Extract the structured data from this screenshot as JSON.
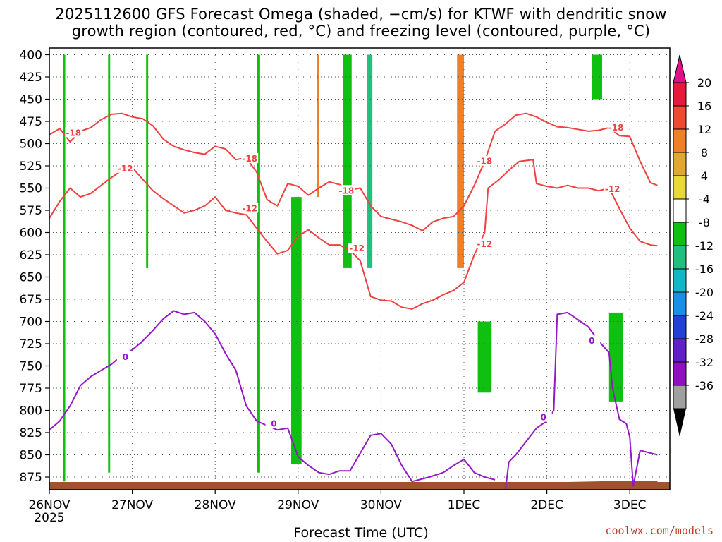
{
  "title_line1": "2025112600 GFS Forecast Omega (shaded, −cm/s) for KTWF with dendritic snow",
  "title_line2": "growth region (contoured, red, °C) and freezing level (contoured, purple, °C)",
  "credit": "coolwx.com/models",
  "chart_data": {
    "type": "heatmap",
    "xlabel": "Forecast Time (UTC)",
    "ylabel": "",
    "y_axis_inverted": true,
    "y_ticks": [
      400,
      425,
      450,
      475,
      500,
      525,
      550,
      575,
      600,
      625,
      650,
      675,
      700,
      725,
      750,
      775,
      800,
      825,
      850,
      875
    ],
    "x_ticks": [
      {
        "label": "26NOV",
        "sublabel": "2025",
        "hour": 0
      },
      {
        "label": "27NOV",
        "sublabel": "",
        "hour": 24
      },
      {
        "label": "28NOV",
        "sublabel": "",
        "hour": 48
      },
      {
        "label": "29NOV",
        "sublabel": "",
        "hour": 72
      },
      {
        "label": "30NOV",
        "sublabel": "",
        "hour": 96
      },
      {
        "label": "1DEC",
        "sublabel": "",
        "hour": 120
      },
      {
        "label": "2DEC",
        "sublabel": "",
        "hour": 144
      },
      {
        "label": "3DEC",
        "sublabel": "",
        "hour": 168
      }
    ],
    "grid": true,
    "colorbar": {
      "labels": [
        "20",
        "16",
        "12",
        "8",
        "4",
        "-4",
        "-8",
        "-12",
        "-16",
        "-20",
        "-24",
        "-28",
        "-32",
        "-36"
      ],
      "colors": [
        "#e8193c",
        "#f04a32",
        "#f08028",
        "#e0a830",
        "#e8d838",
        "#ffffff",
        "#10c010",
        "#20c080",
        "#10b8c8",
        "#1890e8",
        "#2040d8",
        "#6020c8",
        "#9010c0",
        "#a0a0a0"
      ],
      "top_arrow_color": "#e0108a",
      "bottom_arrow_color": "#000000"
    },
    "contours": [
      {
        "label": "-18",
        "color": "#f04040",
        "kind": "dgz",
        "points": [
          [
            0,
            490
          ],
          [
            3,
            483
          ],
          [
            6,
            498
          ],
          [
            9,
            486
          ],
          [
            12,
            482
          ],
          [
            15,
            473
          ],
          [
            18,
            467
          ],
          [
            21,
            466
          ],
          [
            24,
            470
          ],
          [
            27,
            472
          ],
          [
            30,
            480
          ],
          [
            33,
            495
          ],
          [
            36,
            503
          ],
          [
            39,
            507
          ],
          [
            42,
            510
          ],
          [
            45,
            512
          ],
          [
            48,
            503
          ],
          [
            51,
            506
          ],
          [
            54,
            518
          ],
          [
            57,
            516
          ],
          [
            60,
            532
          ],
          [
            63,
            563
          ],
          [
            66,
            570
          ],
          [
            69,
            545
          ],
          [
            72,
            548
          ],
          [
            75,
            558
          ],
          [
            78,
            550
          ],
          [
            81,
            543
          ],
          [
            84,
            546
          ],
          [
            87,
            552
          ],
          [
            90,
            550
          ],
          [
            93,
            570
          ],
          [
            96,
            582
          ],
          [
            99,
            585
          ],
          [
            102,
            588
          ],
          [
            105,
            592
          ],
          [
            108,
            598
          ],
          [
            111,
            588
          ],
          [
            114,
            584
          ],
          [
            117,
            582
          ],
          [
            120,
            570
          ],
          [
            123,
            547
          ],
          [
            126,
            520
          ],
          [
            129,
            486
          ],
          [
            132,
            478
          ],
          [
            135,
            468
          ],
          [
            138,
            466
          ],
          [
            141,
            470
          ],
          [
            144,
            476
          ],
          [
            147,
            481
          ],
          [
            150,
            482
          ],
          [
            153,
            484
          ],
          [
            156,
            486
          ],
          [
            159,
            485
          ],
          [
            162,
            482
          ],
          [
            165,
            491
          ],
          [
            168,
            492
          ],
          [
            171,
            520
          ],
          [
            174,
            544
          ],
          [
            176,
            547
          ]
        ],
        "labels_at": [
          [
            7,
            488
          ],
          [
            58,
            517
          ],
          [
            86,
            553
          ],
          [
            126,
            520
          ],
          [
            164,
            482
          ]
        ]
      },
      {
        "label": "-12",
        "color": "#f04040",
        "kind": "dgz",
        "points": [
          [
            0,
            584
          ],
          [
            3,
            565
          ],
          [
            6,
            550
          ],
          [
            9,
            560
          ],
          [
            12,
            556
          ],
          [
            15,
            547
          ],
          [
            18,
            538
          ],
          [
            21,
            530
          ],
          [
            24,
            527
          ],
          [
            27,
            540
          ],
          [
            30,
            553
          ],
          [
            33,
            562
          ],
          [
            36,
            570
          ],
          [
            39,
            578
          ],
          [
            42,
            575
          ],
          [
            45,
            570
          ],
          [
            48,
            560
          ],
          [
            51,
            575
          ],
          [
            54,
            578
          ],
          [
            57,
            580
          ],
          [
            60,
            595
          ],
          [
            63,
            610
          ],
          [
            66,
            624
          ],
          [
            69,
            620
          ],
          [
            72,
            604
          ],
          [
            75,
            597
          ],
          [
            78,
            606
          ],
          [
            81,
            614
          ],
          [
            84,
            614
          ],
          [
            87,
            620
          ],
          [
            90,
            632
          ],
          [
            93,
            672
          ],
          [
            96,
            676
          ],
          [
            99,
            677
          ],
          [
            102,
            684
          ],
          [
            105,
            686
          ],
          [
            108,
            680
          ],
          [
            111,
            676
          ],
          [
            114,
            670
          ],
          [
            117,
            665
          ],
          [
            120,
            656
          ],
          [
            123,
            625
          ],
          [
            126,
            600
          ],
          [
            127,
            550
          ],
          [
            130,
            541
          ],
          [
            133,
            530
          ],
          [
            136,
            520
          ],
          [
            140,
            518
          ],
          [
            141,
            545
          ],
          [
            144,
            548
          ],
          [
            147,
            550
          ],
          [
            150,
            547
          ],
          [
            153,
            550
          ],
          [
            156,
            550
          ],
          [
            159,
            553
          ],
          [
            162,
            550
          ],
          [
            165,
            573
          ],
          [
            168,
            595
          ],
          [
            171,
            610
          ],
          [
            174,
            614
          ],
          [
            176,
            615
          ]
        ],
        "labels_at": [
          [
            22,
            528
          ],
          [
            58,
            573
          ],
          [
            89,
            618
          ],
          [
            126,
            613
          ],
          [
            163,
            551
          ]
        ]
      },
      {
        "label": "0",
        "color": "#9418c8",
        "kind": "freezing",
        "points": [
          [
            0,
            822
          ],
          [
            3,
            812
          ],
          [
            6,
            795
          ],
          [
            9,
            772
          ],
          [
            12,
            762
          ],
          [
            15,
            755
          ],
          [
            18,
            748
          ],
          [
            21,
            738
          ],
          [
            24,
            732
          ],
          [
            27,
            722
          ],
          [
            30,
            710
          ],
          [
            33,
            697
          ],
          [
            36,
            688
          ],
          [
            39,
            692
          ],
          [
            42,
            690
          ],
          [
            45,
            700
          ],
          [
            48,
            714
          ],
          [
            51,
            736
          ],
          [
            54,
            755
          ],
          [
            57,
            795
          ],
          [
            60,
            812
          ],
          [
            63,
            817
          ],
          [
            66,
            822
          ],
          [
            69,
            820
          ],
          [
            72,
            852
          ],
          [
            75,
            862
          ],
          [
            78,
            870
          ],
          [
            81,
            872
          ],
          [
            84,
            868
          ],
          [
            87,
            868
          ],
          [
            90,
            848
          ],
          [
            93,
            828
          ],
          [
            96,
            826
          ],
          [
            99,
            838
          ],
          [
            102,
            862
          ],
          [
            105,
            880
          ],
          [
            110,
            875
          ],
          [
            114,
            870
          ],
          [
            117,
            862
          ],
          [
            120,
            855
          ],
          [
            123,
            870
          ],
          [
            126,
            875
          ],
          [
            129,
            878
          ]
        ],
        "labels_at": [
          [
            22,
            740
          ],
          [
            65,
            815
          ]
        ]
      },
      {
        "label": "0",
        "color": "#9418c8",
        "kind": "freezing",
        "points": [
          [
            132,
            890
          ],
          [
            133,
            858
          ],
          [
            135,
            850
          ],
          [
            138,
            835
          ],
          [
            141,
            820
          ],
          [
            144,
            812
          ],
          [
            146,
            800
          ],
          [
            147,
            692
          ],
          [
            150,
            690
          ],
          [
            153,
            698
          ],
          [
            156,
            706
          ],
          [
            159,
            722
          ],
          [
            162,
            735
          ],
          [
            163,
            775
          ],
          [
            165,
            810
          ],
          [
            167,
            815
          ],
          [
            168,
            830
          ],
          [
            169,
            885
          ],
          [
            171,
            845
          ],
          [
            174,
            848
          ],
          [
            176,
            850
          ]
        ],
        "labels_at": [
          [
            143,
            808
          ],
          [
            157,
            722
          ]
        ]
      }
    ],
    "shading_bands": [
      {
        "x": [
          4.0,
          4.6
        ],
        "p": [
          400,
          880
        ],
        "value": -8
      },
      {
        "x": [
          17.0,
          17.6
        ],
        "p": [
          400,
          870
        ],
        "value": -8
      },
      {
        "x": [
          28.0,
          28.6
        ],
        "p": [
          400,
          640
        ],
        "value": -8
      },
      {
        "x": [
          60.0,
          61.0
        ],
        "p": [
          400,
          870
        ],
        "value": -8
      },
      {
        "x": [
          70.0,
          73.0
        ],
        "p": [
          560,
          860
        ],
        "value": -8
      },
      {
        "x": [
          77.5,
          78.0
        ],
        "p": [
          400,
          560
        ],
        "value": 12
      },
      {
        "x": [
          85.0,
          87.5
        ],
        "p": [
          400,
          640
        ],
        "value": -8
      },
      {
        "x": [
          92.0,
          93.5
        ],
        "p": [
          400,
          640
        ],
        "value": -12
      },
      {
        "x": [
          118.0,
          120.0
        ],
        "p": [
          400,
          640
        ],
        "value": 12
      },
      {
        "x": [
          124.0,
          128.0
        ],
        "p": [
          700,
          780
        ],
        "value": -8
      },
      {
        "x": [
          157.0,
          160.0
        ],
        "p": [
          400,
          450
        ],
        "value": -8
      },
      {
        "x": [
          162.0,
          166.0
        ],
        "p": [
          690,
          790
        ],
        "value": -8
      }
    ]
  }
}
